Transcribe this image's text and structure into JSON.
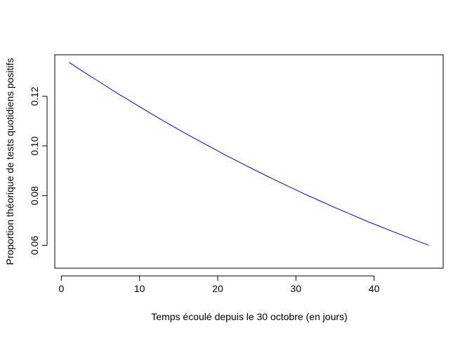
{
  "chart_data": {
    "type": "line",
    "title": "",
    "xlabel": "Temps écoulé depuis le 30 octobre (en jours)",
    "ylabel": "Proportion théorique de tests quotidiens positifs",
    "xlim": [
      -0.84,
      48.84
    ],
    "ylim": [
      0.0508,
      0.1367
    ],
    "xticks": [
      0,
      10,
      20,
      30,
      40
    ],
    "xtick_labels": [
      "0",
      "10",
      "20",
      "30",
      "40"
    ],
    "yticks": [
      0.06,
      0.08,
      0.1,
      0.12
    ],
    "ytick_labels": [
      "0.06",
      "0.08",
      "0.10",
      "0.12"
    ],
    "grid": false,
    "legend": "none",
    "series": [
      {
        "color": "#0000ff",
        "x": [
          1,
          3,
          5,
          7,
          9,
          11,
          13,
          15,
          17,
          19,
          21,
          23,
          25,
          27,
          29,
          31,
          33,
          35,
          37,
          39,
          41,
          43,
          45,
          47
        ],
        "y": [
          0.1336,
          0.1295,
          0.1255,
          0.1215,
          0.1177,
          0.1139,
          0.1102,
          0.1066,
          0.1031,
          0.0997,
          0.0963,
          0.0931,
          0.0899,
          0.0868,
          0.0838,
          0.0808,
          0.078,
          0.0752,
          0.0725,
          0.0698,
          0.0673,
          0.0648,
          0.0624,
          0.06
        ]
      }
    ]
  }
}
